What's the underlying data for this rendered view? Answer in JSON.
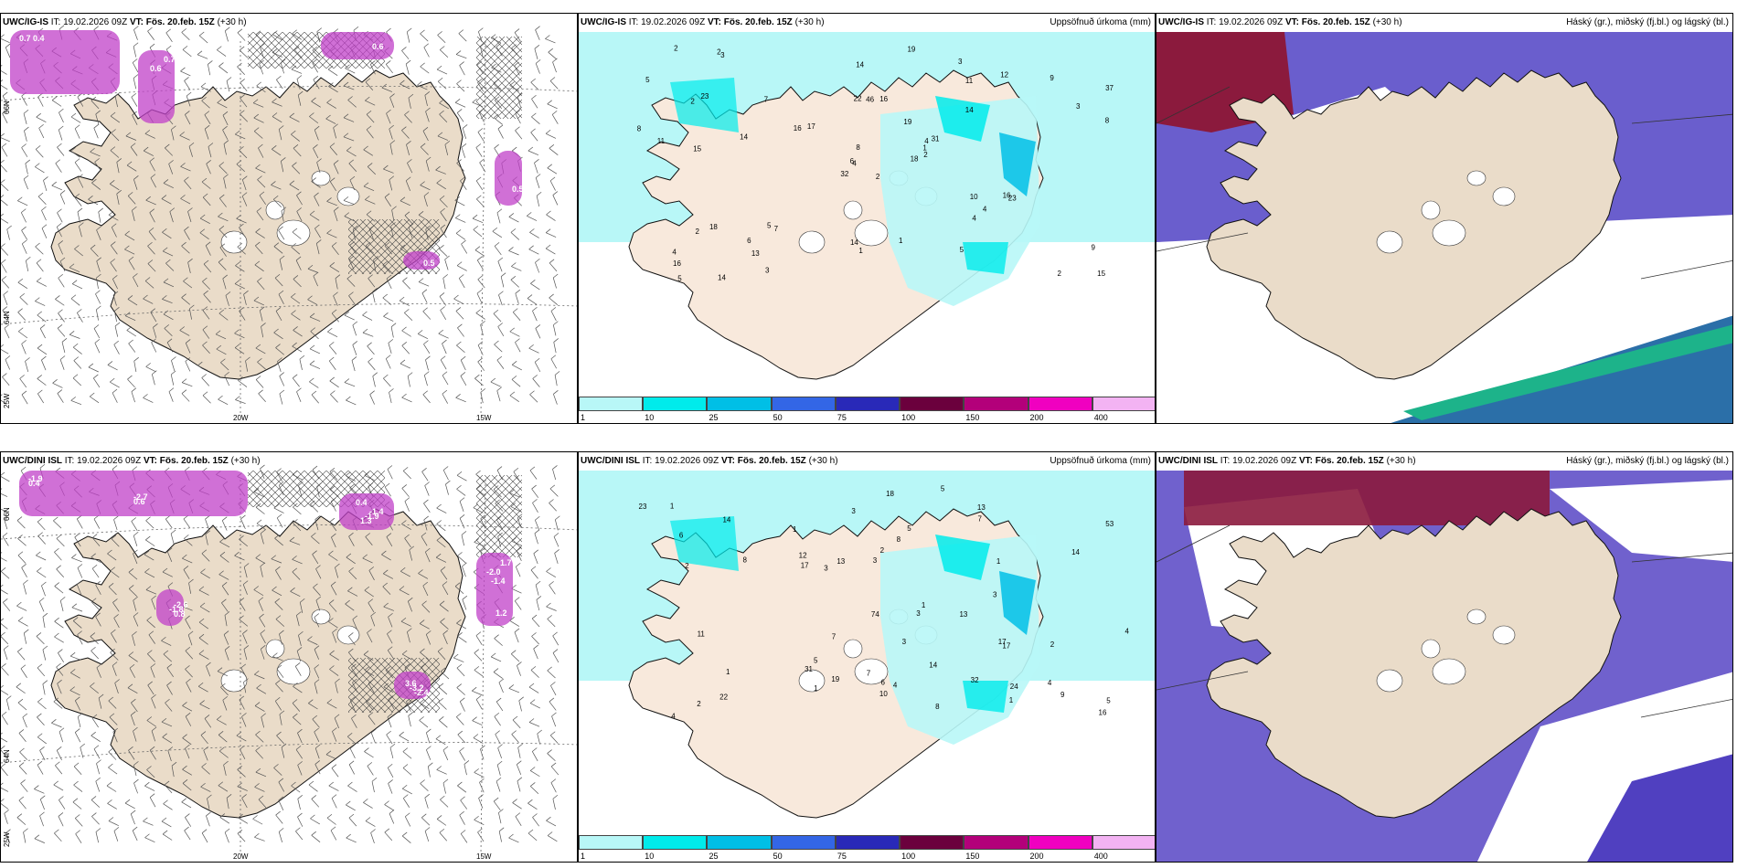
{
  "panels": {
    "top_left": {
      "model": "UWC/IG-IS",
      "it": "IT: 19.02.2026 09Z",
      "vt_label": "VT:",
      "vt": "Fös. 20.feb. 15Z",
      "lead": "(+30 h)",
      "title": ""
    },
    "top_mid": {
      "model": "UWC/IG-IS",
      "it": "IT: 19.02.2026 09Z",
      "vt_label": "VT:",
      "vt": "Fös. 20.feb. 15Z",
      "lead": "(+30 h)",
      "title": "Uppsöfnuð úrkoma (mm)"
    },
    "top_right": {
      "model": "UWC/IG-IS",
      "it": "IT: 19.02.2026 09Z",
      "vt_label": "VT:",
      "vt": "Fös. 20.feb. 15Z",
      "lead": "(+30 h)",
      "title": "Háský (gr.), miðský (fj.bl.) og lágský (bl.)"
    },
    "bot_left": {
      "model": "UWC/DINI ISL",
      "it": "IT: 19.02.2026 09Z",
      "vt_label": "VT:",
      "vt": "Fös. 20.feb. 15Z",
      "lead": "(+30 h)",
      "title": ""
    },
    "bot_mid": {
      "model": "UWC/DINI ISL",
      "it": "IT: 19.02.2026 09Z",
      "vt_label": "VT:",
      "vt": "Fös. 20.feb. 15Z",
      "lead": "(+30 h)",
      "title": "Uppsöfnuð úrkoma (mm)"
    },
    "bot_right": {
      "model": "UWC/DINI ISL",
      "it": "IT: 19.02.2026 09Z",
      "vt_label": "VT:",
      "vt": "Fös. 20.feb. 15Z",
      "lead": "(+30 h)",
      "title": "Háský (gr.), miðský (fj.bl.) og lágský (bl.)"
    }
  },
  "axis_labels": {
    "lon_20w": "20W",
    "lon_15w": "15W",
    "lon_25w": "25W",
    "lat_66n": "66N",
    "lat_64n": "64N"
  },
  "colorbar": {
    "colors": [
      "#b8f7f7",
      "#00ebeb",
      "#00bfe6",
      "#3366e6",
      "#2929b8",
      "#6b003d",
      "#b3007a",
      "#f000c0",
      "#f3b3f3"
    ],
    "labels": [
      "1",
      "10",
      "25",
      "50",
      "75",
      "100",
      "150",
      "200",
      "400"
    ]
  },
  "land_color": "#eadcc9",
  "precip_values_top": [
    "2",
    "2",
    "4",
    "4",
    "4",
    "7",
    "3",
    "16",
    "11",
    "18",
    "3",
    "15",
    "15",
    "37",
    "32",
    "14",
    "14",
    "22",
    "19",
    "18",
    "17",
    "16",
    "13",
    "46",
    "31",
    "23",
    "23",
    "14",
    "11",
    "10",
    "8",
    "6",
    "14",
    "8",
    "7",
    "12",
    "5",
    "2",
    "9",
    "16",
    "19",
    "16",
    "14",
    "4",
    "3",
    "8",
    "1",
    "5",
    "1",
    "2",
    "2",
    "3",
    "5",
    "4",
    "5",
    "6",
    "2",
    "2",
    "1",
    "9"
  ],
  "precip_values_bot": [
    "2",
    "2",
    "1",
    "3",
    "3",
    "5",
    "4",
    "13",
    "24",
    "31",
    "16",
    "17",
    "19",
    "18",
    "32",
    "12",
    "17",
    "11",
    "74",
    "53",
    "23",
    "22",
    "10",
    "13",
    "17",
    "7",
    "13",
    "8",
    "14",
    "14",
    "9",
    "7",
    "5",
    "4",
    "3",
    "8",
    "6",
    "1",
    "2",
    "7",
    "8",
    "5",
    "1",
    "1",
    "3",
    "3",
    "2",
    "4",
    "4",
    "5",
    "6",
    "3",
    "1",
    "1",
    "1",
    "14"
  ],
  "temp_labels_top": [
    "0.7",
    "0.6",
    "0.6",
    "0.5",
    "0.5",
    "0.4",
    "0.7"
  ],
  "temp_labels_bot": [
    "-1.9",
    "-1.4",
    "-1.4",
    "-2.6",
    "-2.4",
    "-2.7",
    "-1.9",
    "-2.0",
    "-1.8",
    "-3.2",
    "0.4",
    "1.3",
    "1.7",
    "0.8",
    "3.6",
    "0.6",
    "0.4",
    "1.2"
  ]
}
